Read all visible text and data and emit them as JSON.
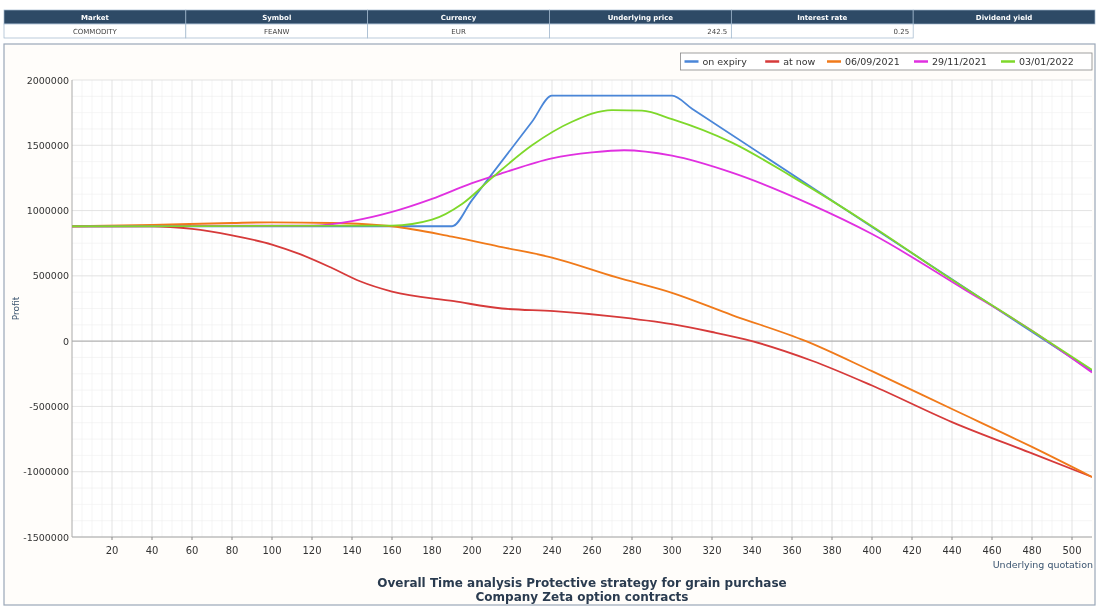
{
  "chart_data": {
    "type": "line",
    "title": "Overall Time analysis Protective strategy for grain purchase",
    "subtitle": "Company Zeta option contracts",
    "xlabel": "Underlying quotation",
    "ylabel": "Profit",
    "annotations": [
      "Market",
      "Symbol",
      "Currency",
      "Underlying price",
      "Interest rate",
      "Dividend yield",
      "COMMODITY",
      "FEANW",
      "EUR",
      "242.5",
      "0.25"
    ],
    "xlim": [
      0,
      510
    ],
    "xticks": [
      20,
      40,
      60,
      80,
      100,
      120,
      140,
      160,
      180,
      200,
      220,
      240,
      260,
      280,
      300,
      320,
      340,
      360,
      380,
      400,
      420,
      440,
      460,
      480,
      500
    ],
    "ylim": [
      -1500000,
      2000000
    ],
    "yticks": [
      -1500000,
      -1000000,
      -500000,
      0,
      500000,
      1000000,
      1500000,
      2000000
    ],
    "grid": true,
    "legend": "top right",
    "series": [
      {
        "name": "on expiry",
        "color": "#4a86d8",
        "x": [
          0,
          180,
          190,
          200,
          230,
          240,
          250,
          290,
          300,
          310,
          500,
          510
        ],
        "values": [
          880000,
          880000,
          880000,
          1080000,
          1680000,
          1880000,
          1880000,
          1880000,
          1880000,
          1780000,
          -130000,
          -230000
        ]
      },
      {
        "name": "at now",
        "color": "#d63a3a",
        "x": [
          0,
          40,
          60,
          80,
          100,
          114,
          130,
          144,
          160,
          191,
          215,
          241,
          270,
          300,
          320,
          340,
          370,
          400,
          440,
          480,
          510
        ],
        "values": [
          880000,
          880000,
          860000,
          810000,
          740000,
          666000,
          560000,
          459000,
          380000,
          306000,
          250000,
          230000,
          190000,
          130000,
          70000,
          0,
          -150000,
          -340000,
          -620000,
          -860000,
          -1040000
        ]
      },
      {
        "name": "06/09/2021",
        "color": "#f07a1a",
        "x": [
          0,
          40,
          80,
          100,
          130,
          160,
          190,
          215,
          240,
          272,
          300,
          330,
          367,
          400,
          440,
          480,
          510
        ],
        "values": [
          880000,
          890000,
          905000,
          910000,
          905000,
          880000,
          800000,
          720000,
          640000,
          490000,
          370000,
          200000,
          0,
          -230000,
          -520000,
          -810000,
          -1040000
        ]
      },
      {
        "name": "29/11/2021",
        "color": "#e030e0",
        "x": [
          0,
          120,
          140,
          160,
          180,
          200,
          215,
          240,
          260,
          276,
          300,
          330,
          369,
          400,
          446,
          480,
          510
        ],
        "values": [
          880000,
          885000,
          920000,
          990000,
          1090000,
          1210000,
          1286000,
          1400000,
          1445000,
          1462000,
          1420000,
          1290000,
          1049000,
          820000,
          398000,
          80000,
          -240000
        ]
      },
      {
        "name": "03/01/2022",
        "color": "#7ed82a",
        "x": [
          0,
          160,
          180,
          195,
          210,
          230,
          250,
          270,
          285,
          300,
          330,
          360,
          400,
          440,
          480,
          510
        ],
        "values": [
          880000,
          885000,
          930000,
          1050000,
          1250000,
          1500000,
          1680000,
          1770000,
          1765000,
          1700000,
          1520000,
          1260000,
          880000,
          470000,
          80000,
          -220000
        ]
      }
    ]
  }
}
